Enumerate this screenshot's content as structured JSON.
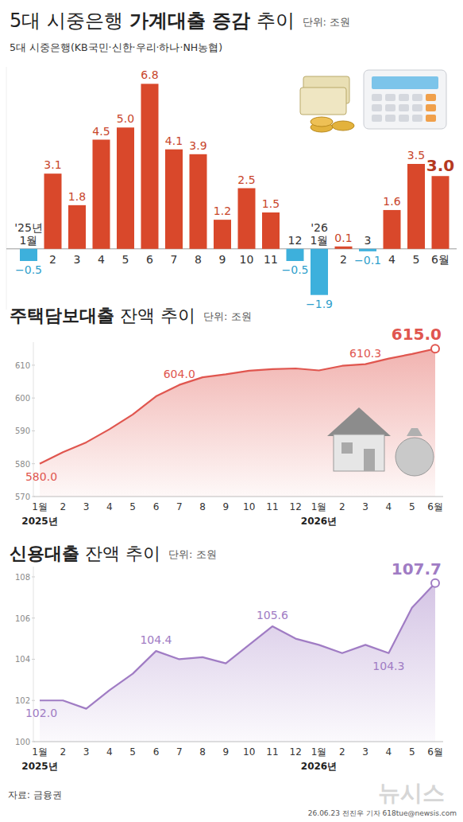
{
  "chart_data": [
    {
      "type": "bar",
      "title": "5대 시중은행 가계대출 증감 추이",
      "title_bold": "가계대출 증감",
      "unit": "단위: 조원",
      "subtitle": "5대 시중은행(KB국민·신한·우리·하나·NH농협)",
      "categories": [
        "'25년\n1월",
        "2",
        "3",
        "4",
        "5",
        "6",
        "7",
        "8",
        "9",
        "10",
        "11",
        "12",
        "'26\n1월",
        "2",
        "3",
        "4",
        "5",
        "6월"
      ],
      "values": [
        -0.5,
        3.1,
        1.8,
        4.5,
        5.0,
        6.8,
        4.1,
        3.9,
        1.2,
        2.5,
        1.5,
        -0.5,
        -1.9,
        0.1,
        -0.1,
        1.6,
        3.5,
        3.0
      ],
      "value_labels": [
        "−0.5",
        "3.1",
        "1.8",
        "4.5",
        "5.0",
        "6.8",
        "4.1",
        "3.9",
        "1.2",
        "2.5",
        "1.5",
        "−0.5",
        "−1.9",
        "0.1",
        "−0.1",
        "1.6",
        "3.5",
        "3.0"
      ],
      "colors": [
        "#3db0dc",
        "#d9482b",
        "#d9482b",
        "#d9482b",
        "#d9482b",
        "#d9482b",
        "#d9482b",
        "#d9482b",
        "#d9482b",
        "#d9482b",
        "#d9482b",
        "#3db0dc",
        "#3db0dc",
        "#d9482b",
        "#3db0dc",
        "#d9482b",
        "#d9482b",
        "#d9482b"
      ],
      "ylim": [
        -2.5,
        7.5
      ],
      "yticks": [
        0
      ],
      "tick_labels": "x",
      "data_labels": true,
      "grid": false
    },
    {
      "type": "area",
      "title": "주택담보대출 잔액 추이",
      "title_bold": "주택담보대출",
      "unit": "단위: 조원",
      "categories": [
        "1월",
        "2",
        "3",
        "4",
        "5",
        "6",
        "7",
        "8",
        "9",
        "10",
        "11",
        "12",
        "1월",
        "2",
        "3",
        "4",
        "5",
        "6월"
      ],
      "x_groups": [
        {
          "index": 0,
          "label": "2025년"
        },
        {
          "index": 12,
          "label": "2026년"
        }
      ],
      "values": [
        580.0,
        583.5,
        586.5,
        590.5,
        595.0,
        600.5,
        604.0,
        606.3,
        607.2,
        608.3,
        608.8,
        609.0,
        608.4,
        609.8,
        610.3,
        612.0,
        613.4,
        615.0
      ],
      "value_labels": [
        "580.0",
        null,
        null,
        null,
        null,
        null,
        "604.0",
        null,
        null,
        null,
        null,
        null,
        null,
        null,
        "610.3",
        null,
        null,
        "615.0"
      ],
      "color": "#e0564f",
      "ylim": [
        570,
        617
      ],
      "yticks": [
        570,
        580,
        590,
        600,
        610
      ],
      "grid": false
    },
    {
      "type": "area",
      "title": "신용대출 잔액 추이",
      "title_bold": "신용대출",
      "unit": "단위: 조원",
      "categories": [
        "1월",
        "2",
        "3",
        "4",
        "5",
        "6",
        "7",
        "8",
        "9",
        "10",
        "11",
        "12",
        "1월",
        "2",
        "3",
        "4",
        "5",
        "6월"
      ],
      "x_groups": [
        {
          "index": 0,
          "label": "2025년"
        },
        {
          "index": 12,
          "label": "2026년"
        }
      ],
      "values": [
        102.0,
        102.0,
        101.6,
        102.5,
        103.3,
        104.4,
        104.0,
        104.1,
        103.8,
        104.7,
        105.6,
        105.0,
        104.7,
        104.3,
        104.7,
        104.3,
        106.5,
        107.7
      ],
      "value_labels": [
        "102.0",
        null,
        null,
        null,
        null,
        "104.4",
        null,
        null,
        null,
        null,
        "105.6",
        null,
        null,
        null,
        null,
        "104.3",
        null,
        "107.7"
      ],
      "color": "#a07cc4",
      "ylim": [
        100,
        108.5
      ],
      "yticks": [
        100,
        102,
        104,
        106,
        108
      ],
      "grid": false
    }
  ],
  "source": "자료: 금융권",
  "credit": "26.06.23 전진우 기자 618tue@newsis.com",
  "watermark": "뉴시스"
}
